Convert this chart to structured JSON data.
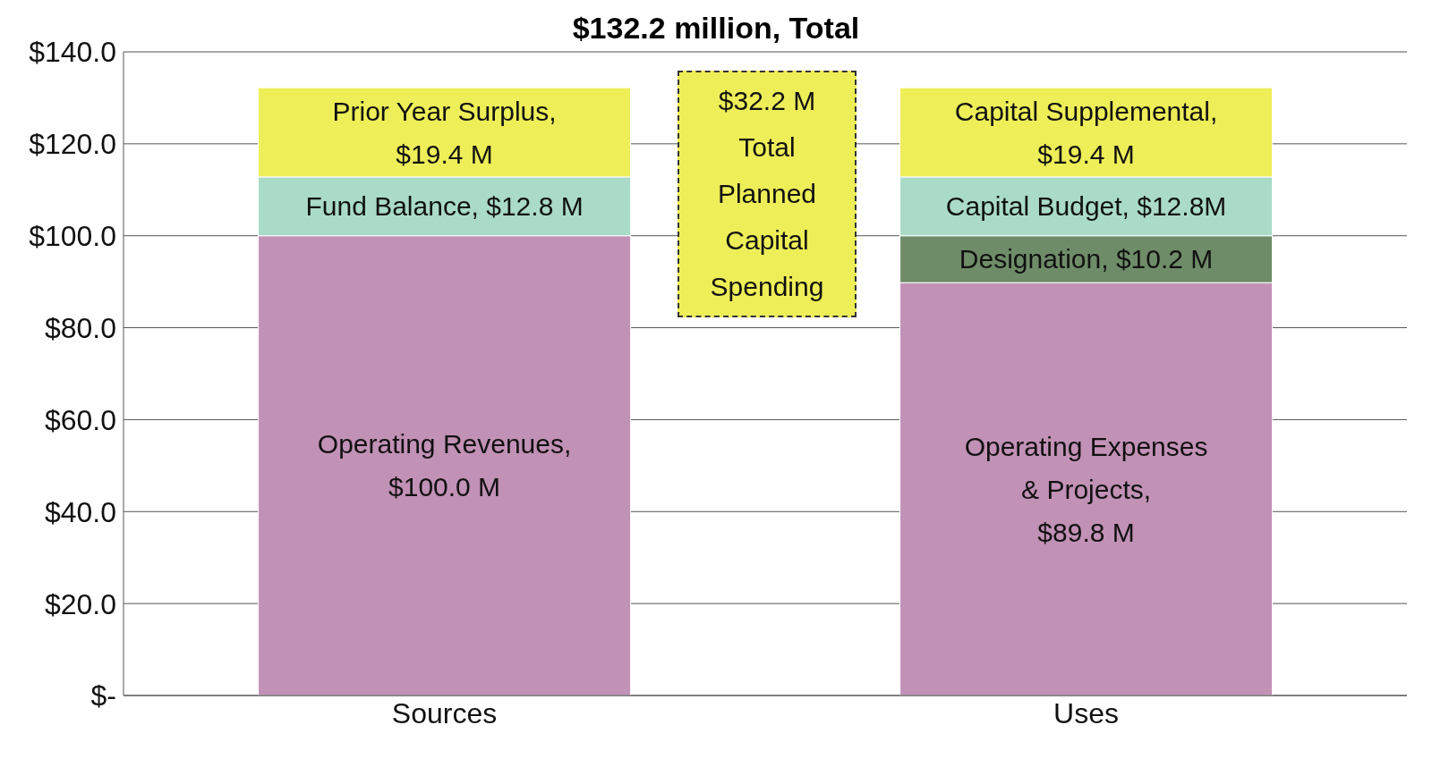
{
  "chart_data": {
    "type": "bar",
    "title": "$132.2 million, Total",
    "categories": [
      "Sources",
      "Uses"
    ],
    "stacked": true,
    "series": [
      {
        "color": "#c291b6",
        "values": [
          100.0,
          89.8
        ],
        "value_labels": [
          "Operating Revenues,\n$100.0 M",
          "Operating Expenses\n& Projects,\n$89.8 M"
        ]
      },
      {
        "color": "#6f8c68",
        "values": [
          null,
          10.2
        ],
        "value_labels": [
          null,
          "Designation,  $10.2 M"
        ]
      },
      {
        "color": "#a9dbc8",
        "values": [
          12.8,
          12.8
        ],
        "value_labels": [
          "Fund Balance,  $12.8 M",
          "Capital Budget,  $12.8M"
        ]
      },
      {
        "color": "#eeee58",
        "values": [
          19.4,
          19.4
        ],
        "value_labels": [
          "Prior Year Surplus,\n$19.4 M",
          "Capital Supplemental,\n$19.4 M"
        ]
      }
    ],
    "annotations": [
      "$32.2 M\nTotal\nPlanned\nCapital\nSpending"
    ],
    "ylim": [
      0,
      140
    ],
    "yticks": [
      {
        "value": 0,
        "label": "$-"
      },
      {
        "value": 20,
        "label": "$20.0"
      },
      {
        "value": 40,
        "label": "$40.0"
      },
      {
        "value": 60,
        "label": "$60.0"
      },
      {
        "value": 80,
        "label": "$80.0"
      },
      {
        "value": 100,
        "label": "$100.0"
      },
      {
        "value": 120,
        "label": "$120.0"
      },
      {
        "value": 140,
        "label": "$140.0"
      }
    ],
    "grid": "y",
    "legend": false
  }
}
